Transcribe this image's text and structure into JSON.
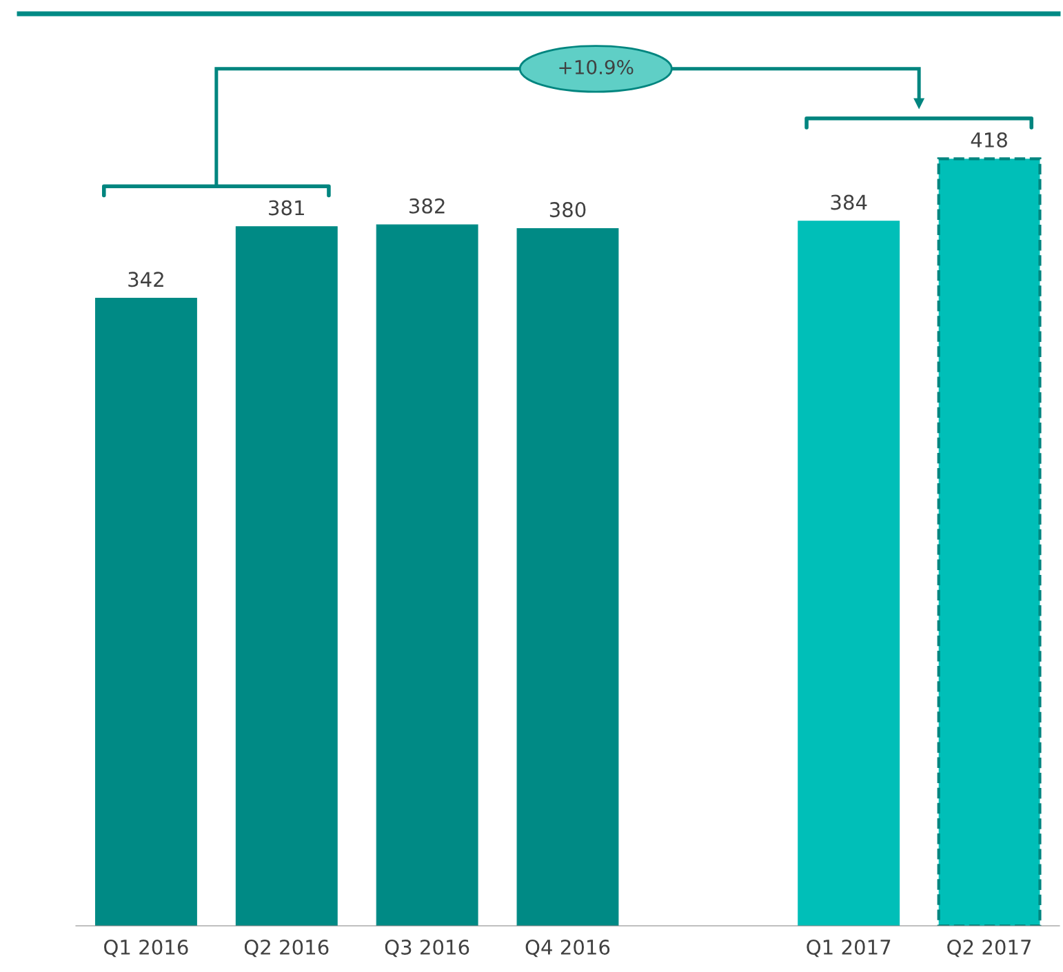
{
  "chart_data": {
    "type": "bar",
    "categories": [
      "Q1 2016",
      "Q2 2016",
      "Q3 2016",
      "Q4 2016",
      null,
      "Q1 2017",
      "Q2 2017"
    ],
    "values": [
      342,
      381,
      382,
      380,
      null,
      384,
      418
    ],
    "colors": [
      "#008a85",
      "#008a85",
      "#008a85",
      "#008a85",
      "#008a85",
      "#00bfb8",
      "#00bfb8"
    ],
    "ylim": [
      0,
      497
    ],
    "data_labels": true,
    "grid": false,
    "legend": false,
    "annotations": [
      "+10.9%"
    ]
  }
}
